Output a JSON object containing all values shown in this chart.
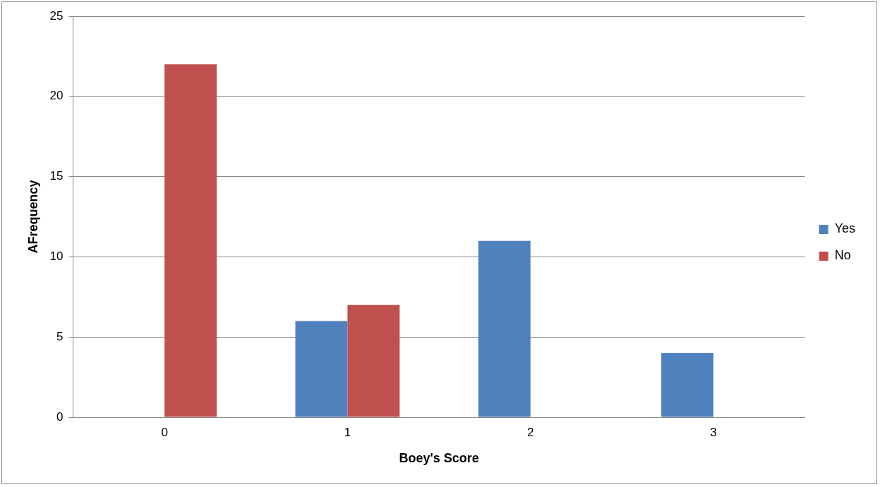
{
  "chart_data": {
    "type": "bar",
    "xlabel": "Boey's Score",
    "ylabel": "AFrequency",
    "categories": [
      "0",
      "1",
      "2",
      "3"
    ],
    "series": [
      {
        "name": "Yes",
        "color": "#4f81bd",
        "values": [
          0,
          6,
          11,
          4
        ]
      },
      {
        "name": "No",
        "color": "#c0504d",
        "values": [
          22,
          7,
          0,
          0
        ]
      }
    ],
    "ylim": [
      0,
      25
    ],
    "yticks": [
      0,
      5,
      10,
      15,
      20,
      25
    ],
    "grid": "y",
    "legend": "right"
  }
}
